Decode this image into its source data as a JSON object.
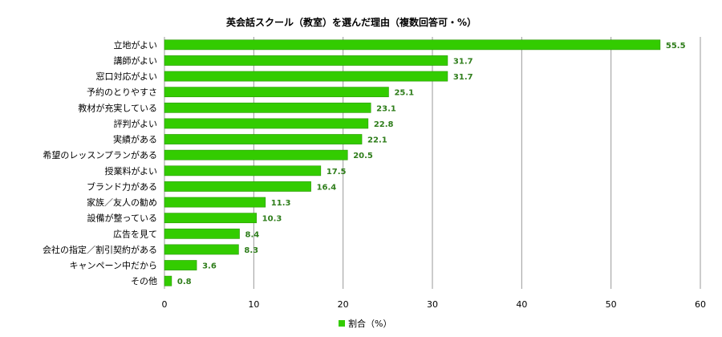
{
  "chart_data": {
    "type": "bar",
    "orientation": "horizontal",
    "title": "英会話スクール（教室）を選んだ理由（複数回答可・%）",
    "categories": [
      "立地がよい",
      "講師がよい",
      "窓口対応がよい",
      "予約のとりやすさ",
      "教材が充実している",
      "評判がよい",
      "実績がある",
      "希望のレッスンプランがある",
      "授業料がよい",
      "ブランド力がある",
      "家族／友人の勧め",
      "設備が整っている",
      "広告を見て",
      "会社の指定／割引契約がある",
      "キャンペーン中だから",
      "その他"
    ],
    "series": [
      {
        "name": "割合（%）",
        "values": [
          55.5,
          31.7,
          31.7,
          25.1,
          23.1,
          22.8,
          22.1,
          20.5,
          17.5,
          16.4,
          11.3,
          10.3,
          8.4,
          8.3,
          3.6,
          0.8
        ]
      }
    ],
    "value_labels": [
      "55.5",
      "31.7",
      "31.7",
      "25.1",
      "23.1",
      "22.8",
      "22.1",
      "20.5",
      "17.5",
      "16.4",
      "11.3",
      "10.3",
      "8.4",
      "8.3",
      "3.6",
      "0.8"
    ],
    "xlim": [
      0,
      60
    ],
    "xticks": [
      0,
      10,
      20,
      30,
      40,
      50,
      60
    ],
    "xtick_labels": [
      "0",
      "10",
      "20",
      "30",
      "40",
      "50",
      "60"
    ],
    "grid": "vertical",
    "legend": "bottom",
    "colors": {
      "bar_fill": "#33cc00",
      "bar_stroke": "#2a9900",
      "value_label": "#2e7d1a",
      "gridline": "#999999"
    }
  }
}
